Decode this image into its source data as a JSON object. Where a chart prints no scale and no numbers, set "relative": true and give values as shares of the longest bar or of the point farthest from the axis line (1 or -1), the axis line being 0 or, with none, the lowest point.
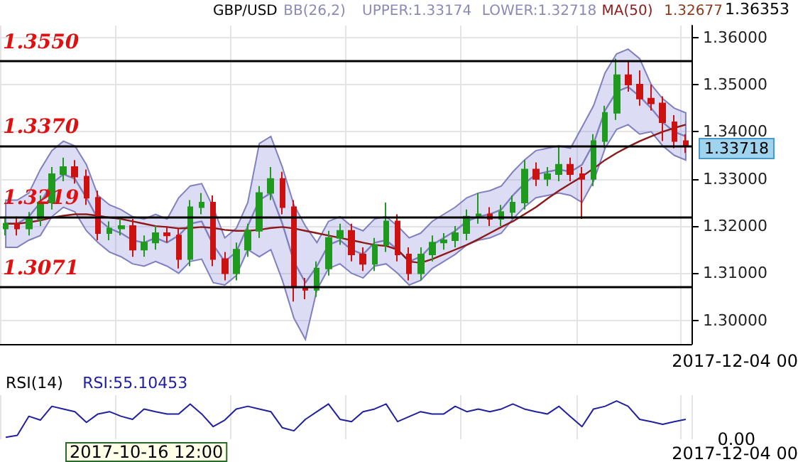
{
  "chart_data": [
    {
      "type": "candlestick",
      "title": "GBP/USD",
      "categories": [
        null,
        null,
        null,
        null,
        null,
        null,
        null,
        null,
        null,
        null,
        null,
        null,
        null,
        null,
        null,
        null,
        null,
        null,
        null,
        null,
        null,
        null,
        null,
        null,
        null,
        null,
        null,
        null,
        null,
        null,
        null,
        null,
        null,
        null,
        null,
        null,
        null,
        null,
        null,
        null,
        null,
        null,
        null,
        null,
        null,
        null,
        null,
        null,
        null,
        null,
        null,
        null,
        null,
        null,
        null,
        null,
        null,
        null,
        null,
        null
      ],
      "ylim": [
        1.295,
        1.3625
      ],
      "yticks": [
        {
          "value": 1.3,
          "label": "1.30000"
        },
        {
          "value": 1.31,
          "label": "1.31000"
        },
        {
          "value": 1.32,
          "label": "1.32000"
        },
        {
          "value": 1.33,
          "label": "1.33000"
        },
        {
          "value": 1.34,
          "label": "1.34000"
        },
        {
          "value": 1.35,
          "label": "1.35000"
        },
        {
          "value": 1.36,
          "label": "1.36000"
        }
      ],
      "tick_labels": "y",
      "grid": true,
      "series": [
        {
          "type": "line",
          "name": "BB(26,2)",
          "color": "#8080c0",
          "values": [
            1.3205,
            1.3205,
            1.322,
            1.325,
            1.329,
            1.331,
            1.33,
            1.326,
            1.3215,
            1.3195,
            1.3185,
            1.317,
            1.3165,
            1.3175,
            1.3165,
            1.318,
            1.3205,
            1.321,
            1.316,
            1.3125,
            1.3145,
            1.32,
            1.3255,
            1.327,
            1.3205,
            1.3125,
            1.308,
            1.3115,
            1.316,
            1.317,
            1.315,
            1.314,
            1.3165,
            1.317,
            1.315,
            1.3125,
            1.3135,
            1.316,
            1.3175,
            1.319,
            1.321,
            1.322,
            1.3225,
            1.3235,
            1.3265,
            1.329,
            1.331,
            1.3315,
            1.332,
            1.3315,
            1.333,
            1.3375,
            1.3445,
            1.3485,
            1.3495,
            1.3475,
            1.345,
            1.342,
            1.34,
            1.339
          ],
          "upper": [
            1.3255,
            1.3255,
            1.327,
            1.332,
            1.336,
            1.338,
            1.337,
            1.333,
            1.3265,
            1.3245,
            1.3235,
            1.322,
            1.3215,
            1.3225,
            1.3215,
            1.326,
            1.3285,
            1.329,
            1.324,
            1.3175,
            1.3195,
            1.325,
            1.3375,
            1.339,
            1.3325,
            1.3245,
            1.32,
            1.3165,
            1.321,
            1.322,
            1.32,
            1.319,
            1.3215,
            1.322,
            1.32,
            1.3175,
            1.3185,
            1.321,
            1.3225,
            1.324,
            1.326,
            1.327,
            1.3275,
            1.3285,
            1.3315,
            1.334,
            1.336,
            1.3365,
            1.337,
            1.3365,
            1.341,
            1.3455,
            1.3525,
            1.3565,
            1.3575,
            1.3555,
            1.35,
            1.347,
            1.345,
            1.344
          ],
          "lower": [
            1.3155,
            1.3155,
            1.317,
            1.318,
            1.322,
            1.324,
            1.323,
            1.319,
            1.3165,
            1.3145,
            1.3135,
            1.312,
            1.3115,
            1.3125,
            1.3115,
            1.31,
            1.3125,
            1.313,
            1.308,
            1.3075,
            1.3095,
            1.315,
            1.3135,
            1.315,
            1.3085,
            1.3005,
            1.296,
            1.3065,
            1.311,
            1.312,
            1.31,
            1.309,
            1.3115,
            1.312,
            1.31,
            1.3075,
            1.3085,
            1.311,
            1.3125,
            1.314,
            1.316,
            1.317,
            1.3175,
            1.3185,
            1.3215,
            1.324,
            1.326,
            1.3265,
            1.327,
            1.3265,
            1.325,
            1.3295,
            1.3365,
            1.3405,
            1.3415,
            1.3395,
            1.34,
            1.337,
            1.335,
            1.334
          ]
        },
        {
          "type": "line",
          "name": "MA(50)",
          "color": "#8b1a1a",
          "values": [
            1.3205,
            1.3205,
            1.3208,
            1.3212,
            1.3218,
            1.3222,
            1.3225,
            1.3225,
            1.3222,
            1.3218,
            1.3215,
            1.321,
            1.3205,
            1.32,
            1.3198,
            1.3195,
            1.3196,
            1.3198,
            1.3196,
            1.3192,
            1.319,
            1.319,
            1.3192,
            1.3196,
            1.3198,
            1.3195,
            1.319,
            1.3185,
            1.318,
            1.3175,
            1.317,
            1.3165,
            1.316,
            1.3158,
            1.315,
            1.3125,
            1.3122,
            1.313,
            1.314,
            1.315,
            1.316,
            1.3172,
            1.3185,
            1.3198,
            1.321,
            1.3225,
            1.324,
            1.3258,
            1.3275,
            1.329,
            1.3305,
            1.3322,
            1.334,
            1.3355,
            1.3368,
            1.338,
            1.339,
            1.34,
            1.3408,
            1.3415
          ]
        },
        {
          "type": "candlestick",
          "ohlc": [
            [
              1.3195,
              1.322,
              1.318,
              1.3205
            ],
            [
              1.3205,
              1.322,
              1.318,
              1.3195
            ],
            [
              1.3195,
              1.323,
              1.318,
              1.3215
            ],
            [
              1.3215,
              1.3265,
              1.32,
              1.325
            ],
            [
              1.325,
              1.3325,
              1.3235,
              1.331
            ],
            [
              1.331,
              1.3345,
              1.3295,
              1.3325
            ],
            [
              1.3325,
              1.334,
              1.329,
              1.3305
            ],
            [
              1.3305,
              1.332,
              1.3245,
              1.326
            ],
            [
              1.326,
              1.3275,
              1.317,
              1.3185
            ],
            [
              1.3185,
              1.321,
              1.317,
              1.3195
            ],
            [
              1.3195,
              1.3215,
              1.318,
              1.32
            ],
            [
              1.32,
              1.3215,
              1.3135,
              1.315
            ],
            [
              1.315,
              1.318,
              1.3135,
              1.3165
            ],
            [
              1.3165,
              1.32,
              1.315,
              1.3185
            ],
            [
              1.3185,
              1.32,
              1.3165,
              1.318
            ],
            [
              1.318,
              1.3195,
              1.311,
              1.313
            ],
            [
              1.313,
              1.3255,
              1.3115,
              1.324
            ],
            [
              1.324,
              1.327,
              1.3225,
              1.325
            ],
            [
              1.325,
              1.3265,
              1.3115,
              1.313
            ],
            [
              1.313,
              1.3145,
              1.3085,
              1.31
            ],
            [
              1.31,
              1.3165,
              1.3085,
              1.315
            ],
            [
              1.315,
              1.3205,
              1.3135,
              1.319
            ],
            [
              1.319,
              1.3285,
              1.3175,
              1.327
            ],
            [
              1.327,
              1.3325,
              1.3255,
              1.33
            ],
            [
              1.33,
              1.3315,
              1.3225,
              1.324
            ],
            [
              1.324,
              1.3255,
              1.304,
              1.307
            ],
            [
              1.307,
              1.309,
              1.3045,
              1.3065
            ],
            [
              1.3065,
              1.3125,
              1.305,
              1.311
            ],
            [
              1.311,
              1.319,
              1.3095,
              1.3175
            ],
            [
              1.3175,
              1.3205,
              1.316,
              1.319
            ],
            [
              1.319,
              1.3205,
              1.3125,
              1.314
            ],
            [
              1.314,
              1.3155,
              1.3105,
              1.312
            ],
            [
              1.312,
              1.3175,
              1.3105,
              1.316
            ],
            [
              1.316,
              1.325,
              1.3145,
              1.321
            ],
            [
              1.321,
              1.3225,
              1.3125,
              1.314
            ],
            [
              1.314,
              1.3155,
              1.3085,
              1.31
            ],
            [
              1.31,
              1.3155,
              1.3085,
              1.314
            ],
            [
              1.314,
              1.318,
              1.3125,
              1.3165
            ],
            [
              1.3165,
              1.3185,
              1.315,
              1.317
            ],
            [
              1.317,
              1.32,
              1.3155,
              1.3185
            ],
            [
              1.3185,
              1.3235,
              1.317,
              1.322
            ],
            [
              1.322,
              1.327,
              1.3205,
              1.3225
            ],
            [
              1.3225,
              1.324,
              1.32,
              1.3215
            ],
            [
              1.3215,
              1.3245,
              1.32,
              1.323
            ],
            [
              1.323,
              1.3265,
              1.3215,
              1.325
            ],
            [
              1.325,
              1.334,
              1.3235,
              1.332
            ],
            [
              1.332,
              1.3335,
              1.3285,
              1.33
            ],
            [
              1.33,
              1.3325,
              1.3285,
              1.331
            ],
            [
              1.331,
              1.337,
              1.3295,
              1.333
            ],
            [
              1.333,
              1.3345,
              1.3295,
              1.331
            ],
            [
              1.331,
              1.3325,
              1.3215,
              1.33
            ],
            [
              1.33,
              1.3395,
              1.3285,
              1.338
            ],
            [
              1.338,
              1.3455,
              1.3365,
              1.344
            ],
            [
              1.344,
              1.3555,
              1.3425,
              1.352
            ],
            [
              1.352,
              1.355,
              1.3485,
              1.35
            ],
            [
              1.35,
              1.353,
              1.3455,
              1.347
            ],
            [
              1.347,
              1.35,
              1.3445,
              1.346
            ],
            [
              1.346,
              1.3475,
              1.338,
              1.342
            ],
            [
              1.342,
              1.3435,
              1.3365,
              1.338
            ],
            [
              1.338,
              1.3395,
              1.3355,
              1.3372
            ]
          ]
        }
      ],
      "ref_lines": [
        {
          "axis": "y",
          "value": 1.355,
          "label": "1.3550",
          "color": "#000000"
        },
        {
          "axis": "y",
          "value": 1.337,
          "label": "1.3370",
          "color": "#000000"
        },
        {
          "axis": "y",
          "value": 1.3219,
          "label": "1.3219",
          "color": "#000000"
        },
        {
          "axis": "y",
          "value": 1.3071,
          "label": "1.3071",
          "color": "#000000"
        }
      ],
      "annotations": [
        "UPPER:1.33174",
        "LOWER:1.32718",
        "1.32677",
        "1.36353",
        "1.33718",
        "2017-12-04 00"
      ]
    },
    {
      "type": "line",
      "title": "RSI(14)",
      "relative": true,
      "tick_labels": false,
      "grid": "x",
      "categories": [
        null,
        null,
        null,
        null,
        null,
        null,
        null,
        null,
        null,
        null,
        null,
        null,
        null,
        null,
        null,
        null,
        null,
        null,
        null,
        null,
        null,
        null,
        null,
        null,
        null,
        null,
        null,
        null,
        null,
        null,
        null,
        null,
        null,
        null,
        null,
        null,
        null,
        null,
        null,
        null,
        null,
        null,
        null,
        null,
        null,
        null,
        null,
        null,
        null,
        null,
        null,
        null,
        null,
        null,
        null,
        null,
        null,
        null,
        null,
        null
      ],
      "series": [
        {
          "color": "#2020a0",
          "values": [
            0.05,
            0.1,
            0.6,
            0.5,
            0.86,
            0.79,
            0.72,
            0.44,
            0.66,
            0.72,
            0.6,
            0.52,
            0.79,
            0.72,
            0.66,
            0.66,
            0.92,
            0.66,
            0.33,
            0.5,
            0.79,
            0.86,
            0.79,
            0.72,
            0.3,
            0.22,
            0.52,
            0.72,
            0.92,
            0.52,
            0.46,
            0.72,
            0.79,
            0.92,
            0.46,
            0.59,
            0.72,
            0.66,
            0.66,
            0.86,
            0.72,
            0.79,
            0.72,
            0.79,
            0.92,
            0.79,
            0.72,
            0.66,
            0.86,
            0.59,
            0.33,
            0.79,
            0.86,
            1.0,
            0.86,
            0.52,
            0.46,
            0.39,
            0.46,
            0.52
          ]
        }
      ],
      "annotations": [
        "RSI:55.10453",
        "2017-10-16 12:00",
        "2017-12-04 00",
        "0.00"
      ]
    }
  ]
}
